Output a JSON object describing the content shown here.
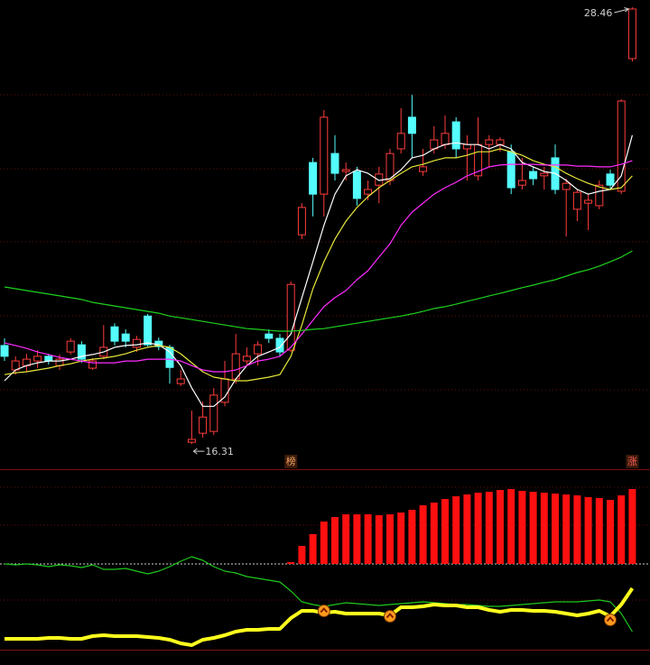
{
  "chart_data": [
    {
      "type": "candlestick",
      "ylim": [
        15.61,
        28.66
      ],
      "up_color": "#ff3c3c",
      "down_color": "#54fcfc",
      "categories": [
        null,
        null,
        null,
        null,
        null,
        null,
        null,
        null,
        null,
        null,
        null,
        null,
        null,
        null,
        null,
        null,
        null,
        null,
        null,
        null,
        null,
        null,
        null,
        null,
        null,
        null,
        "榜",
        null,
        null,
        null,
        null,
        null,
        null,
        null,
        null,
        null,
        null,
        null,
        null,
        null,
        null,
        null,
        null,
        null,
        null,
        null,
        null,
        null,
        null,
        null,
        null,
        null,
        null,
        null,
        null,
        null,
        null,
        "涨"
      ],
      "open": [
        19.05,
        18.37,
        18.49,
        18.62,
        18.75,
        18.49,
        18.87,
        19.07,
        18.42,
        18.75,
        19.57,
        19.37,
        19.0,
        19.87,
        19.17,
        19.0,
        17.99,
        16.36,
        16.61,
        16.66,
        17.47,
        18.12,
        18.62,
        18.82,
        19.37,
        19.25,
        18.92,
        22.13,
        24.14,
        23.26,
        24.39,
        23.89,
        23.89,
        23.26,
        23.51,
        23.64,
        24.52,
        25.4,
        23.89,
        24.52,
        24.64,
        25.27,
        24.52,
        23.77,
        24.64,
        24.64,
        24.44,
        23.51,
        23.89,
        23.77,
        24.27,
        23.39,
        22.84,
        23.01,
        22.94,
        23.82,
        23.34,
        27.03
      ],
      "high": [
        19.25,
        18.75,
        18.82,
        18.92,
        18.82,
        18.8,
        19.25,
        19.17,
        18.7,
        19.62,
        19.67,
        19.5,
        19.32,
        19.93,
        19.27,
        19.07,
        18.37,
        17.24,
        17.49,
        17.87,
        18.62,
        19.37,
        19.0,
        19.17,
        19.5,
        19.37,
        20.83,
        23.01,
        24.27,
        25.6,
        24.9,
        24.14,
        24.02,
        23.64,
        24.02,
        24.52,
        25.65,
        26.02,
        24.52,
        25.15,
        25.45,
        25.4,
        24.9,
        25.4,
        24.9,
        24.84,
        24.64,
        24.27,
        24.02,
        24.02,
        24.64,
        23.69,
        23.39,
        23.26,
        23.64,
        23.94,
        25.9,
        28.46
      ],
      "low": [
        18.62,
        18.24,
        18.32,
        18.42,
        18.52,
        18.37,
        18.8,
        18.57,
        18.37,
        18.67,
        19.05,
        19.0,
        18.87,
        19.02,
        18.92,
        17.99,
        17.92,
        16.31,
        16.49,
        16.56,
        17.36,
        17.99,
        18.49,
        18.49,
        19.12,
        18.75,
        18.87,
        22.01,
        22.64,
        22.64,
        23.64,
        23.64,
        22.94,
        23.09,
        23.01,
        23.51,
        24.39,
        24.27,
        23.77,
        24.39,
        24.52,
        24.27,
        23.64,
        23.64,
        24.02,
        24.44,
        23.26,
        23.39,
        23.51,
        23.39,
        23.26,
        22.08,
        22.51,
        22.26,
        22.84,
        23.39,
        23.26,
        26.95
      ],
      "close": [
        18.75,
        18.62,
        18.67,
        18.75,
        18.62,
        18.67,
        19.17,
        18.67,
        18.62,
        19.0,
        19.17,
        19.17,
        19.22,
        19.07,
        19.02,
        18.44,
        18.12,
        16.44,
        17.06,
        17.67,
        18.12,
        18.82,
        18.75,
        19.07,
        19.25,
        18.87,
        20.75,
        22.89,
        23.26,
        25.4,
        23.84,
        23.94,
        23.14,
        23.39,
        23.82,
        24.39,
        24.95,
        24.95,
        24.02,
        24.77,
        24.95,
        24.52,
        24.64,
        24.64,
        24.77,
        24.77,
        23.44,
        23.64,
        23.69,
        23.84,
        23.39,
        23.56,
        23.31,
        23.09,
        23.51,
        23.51,
        25.85,
        28.41
      ],
      "series": [
        {
          "color": "#ffffff",
          "values": [
            18.07,
            18.37,
            18.49,
            18.57,
            18.62,
            18.62,
            18.67,
            18.75,
            18.8,
            18.87,
            19.0,
            19.05,
            19.07,
            19.12,
            19.07,
            18.87,
            18.49,
            17.87,
            17.36,
            17.36,
            17.62,
            18.12,
            18.49,
            18.75,
            18.87,
            19.0,
            19.37,
            20.38,
            21.38,
            22.39,
            23.26,
            23.77,
            23.94,
            23.84,
            23.64,
            23.69,
            23.94,
            24.27,
            24.34,
            24.52,
            24.64,
            24.69,
            24.64,
            24.64,
            24.52,
            24.64,
            24.52,
            24.14,
            24.02,
            23.89,
            23.84,
            23.64,
            23.39,
            23.26,
            23.34,
            23.39,
            23.77,
            24.9
          ]
        },
        {
          "color": "#e8e83a",
          "values": [
            18.24,
            18.29,
            18.32,
            18.37,
            18.42,
            18.49,
            18.54,
            18.62,
            18.67,
            18.7,
            18.75,
            18.82,
            18.92,
            19.0,
            19.05,
            19.0,
            18.82,
            18.57,
            18.32,
            18.17,
            18.12,
            18.07,
            18.07,
            18.12,
            18.17,
            18.24,
            18.75,
            19.62,
            20.63,
            21.38,
            22.01,
            22.51,
            22.89,
            23.19,
            23.44,
            23.64,
            23.84,
            24.02,
            24.09,
            24.19,
            24.27,
            24.27,
            24.34,
            24.44,
            24.44,
            24.52,
            24.44,
            24.34,
            24.19,
            24.09,
            24.02,
            23.84,
            23.69,
            23.56,
            23.46,
            23.39,
            23.44,
            23.77
          ]
        },
        {
          "color": "#ff2cff",
          "values": [
            19.12,
            19.05,
            18.97,
            18.87,
            18.8,
            18.72,
            18.67,
            18.62,
            18.57,
            18.57,
            18.57,
            18.62,
            18.62,
            18.67,
            18.67,
            18.67,
            18.62,
            18.49,
            18.37,
            18.32,
            18.32,
            18.37,
            18.49,
            18.62,
            18.67,
            18.75,
            19.0,
            19.37,
            19.75,
            20.13,
            20.38,
            20.58,
            20.88,
            21.13,
            21.51,
            21.88,
            22.39,
            22.76,
            23.01,
            23.26,
            23.44,
            23.59,
            23.77,
            23.89,
            24.02,
            24.07,
            24.09,
            24.09,
            24.09,
            24.07,
            24.07,
            24.07,
            24.04,
            24.04,
            24.02,
            24.02,
            24.09,
            24.19
          ]
        },
        {
          "color": "#1ed21e",
          "values": [
            20.68,
            20.63,
            20.58,
            20.53,
            20.48,
            20.43,
            20.38,
            20.33,
            20.25,
            20.2,
            20.15,
            20.1,
            20.05,
            20.0,
            19.95,
            19.87,
            19.82,
            19.77,
            19.72,
            19.67,
            19.62,
            19.57,
            19.52,
            19.5,
            19.47,
            19.45,
            19.45,
            19.47,
            19.5,
            19.52,
            19.57,
            19.62,
            19.67,
            19.72,
            19.77,
            19.82,
            19.87,
            19.93,
            20.0,
            20.08,
            20.13,
            20.2,
            20.28,
            20.35,
            20.43,
            20.5,
            20.58,
            20.66,
            20.73,
            20.81,
            20.88,
            20.98,
            21.08,
            21.16,
            21.26,
            21.38,
            21.51,
            21.68
          ]
        }
      ]
    },
    {
      "type": "bar",
      "ylim": [
        -95,
        105
      ],
      "color": "#ff1010",
      "values": [
        null,
        null,
        null,
        null,
        null,
        null,
        null,
        null,
        null,
        null,
        null,
        null,
        null,
        null,
        null,
        null,
        null,
        null,
        null,
        null,
        null,
        null,
        null,
        null,
        null,
        null,
        2,
        20,
        33,
        47,
        52,
        55,
        55,
        55,
        54,
        55,
        57,
        60,
        65,
        68,
        72,
        75,
        77,
        79,
        80,
        82,
        83,
        81,
        80,
        79,
        78,
        77,
        76,
        74,
        73,
        71,
        76,
        83
      ],
      "series": [
        {
          "color": "#1ec81e",
          "values": [
            0,
            -1,
            0,
            -1,
            -3,
            -1,
            -2,
            -4,
            -1,
            -6,
            -6,
            -5,
            -8,
            -11,
            -8,
            -3,
            3,
            8,
            4,
            -3,
            -8,
            -10,
            -14,
            -16,
            -18,
            -20,
            -30,
            -42,
            -45,
            -47,
            -45,
            -43,
            -44,
            -45,
            -46,
            -45,
            -44,
            -43,
            -42,
            -43,
            -44,
            -45,
            -45,
            -46,
            -47,
            -47,
            -46,
            -45,
            -44,
            -43,
            -42,
            -42,
            -42,
            -41,
            -40,
            -42,
            -55,
            -75
          ]
        },
        {
          "color": "#ffff1e",
          "values": [
            -83,
            -83,
            -83,
            -83,
            -82,
            -82,
            -83,
            -83,
            -80,
            -79,
            -80,
            -80,
            -80,
            -81,
            -82,
            -84,
            -88,
            -90,
            -84,
            -82,
            -79,
            -75,
            -73,
            -73,
            -72,
            -72,
            -60,
            -52,
            -52,
            -54,
            -53,
            -55,
            -55,
            -55,
            -55,
            -57,
            -48,
            -48,
            -47,
            -45,
            -46,
            -46,
            -48,
            -48,
            -51,
            -53,
            -51,
            -51,
            -52,
            -52,
            -53,
            -55,
            -57,
            -55,
            -52,
            -58,
            -45,
            -27
          ]
        },
        {
          "type": "scatter",
          "color": "#ff9a1e",
          "values": [
            null,
            null,
            null,
            null,
            null,
            null,
            null,
            null,
            null,
            null,
            null,
            null,
            null,
            null,
            null,
            null,
            null,
            null,
            null,
            null,
            null,
            null,
            null,
            null,
            null,
            null,
            null,
            null,
            null,
            -52,
            null,
            null,
            null,
            null,
            null,
            -58,
            null,
            null,
            null,
            null,
            null,
            null,
            null,
            null,
            null,
            null,
            null,
            null,
            null,
            null,
            null,
            null,
            null,
            null,
            null,
            -62,
            null,
            null
          ]
        }
      ]
    }
  ]
}
